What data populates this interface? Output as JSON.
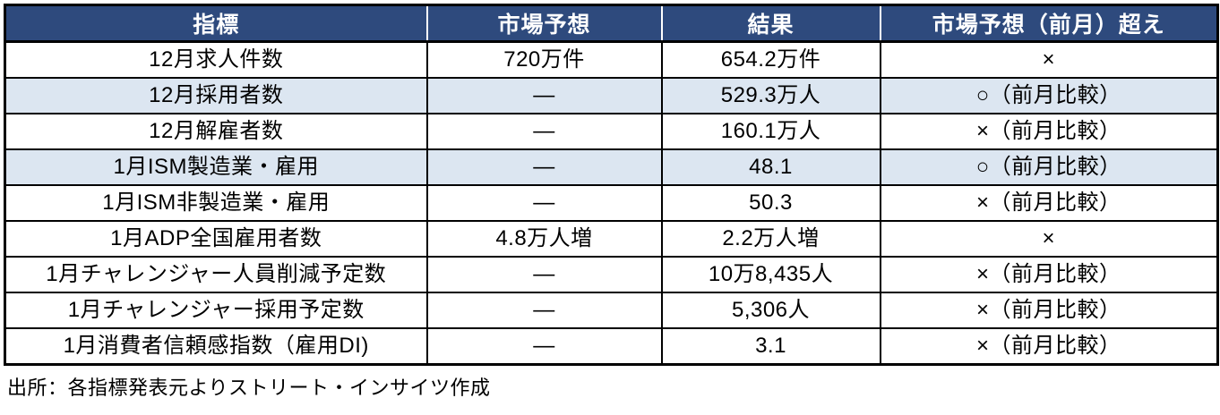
{
  "table": {
    "headers": [
      "指標",
      "市場予想",
      "結果",
      "市場予想（前月）超え"
    ],
    "rows": [
      {
        "indicator": "12月求人件数",
        "forecast": "720万件",
        "result": "654.2万件",
        "beat": "×",
        "highlight": false
      },
      {
        "indicator": "12月採用者数",
        "forecast": "―",
        "result": "529.3万人",
        "beat": "○（前月比較）",
        "highlight": true
      },
      {
        "indicator": "12月解雇者数",
        "forecast": "―",
        "result": "160.1万人",
        "beat": "×（前月比較）",
        "highlight": false
      },
      {
        "indicator": "1月ISM製造業・雇用",
        "forecast": "―",
        "result": "48.1",
        "beat": "○（前月比較）",
        "highlight": true
      },
      {
        "indicator": "1月ISM非製造業・雇用",
        "forecast": "―",
        "result": "50.3",
        "beat": "×（前月比較）",
        "highlight": false
      },
      {
        "indicator": "1月ADP全国雇用者数",
        "forecast": "4.8万人増",
        "result": "2.2万人増",
        "beat": "×",
        "highlight": false
      },
      {
        "indicator": "1月チャレンジャー人員削減予定数",
        "forecast": "―",
        "result": "10万8,435人",
        "beat": "×（前月比較）",
        "highlight": false
      },
      {
        "indicator": "1月チャレンジャー採用予定数",
        "forecast": "―",
        "result": "5,306人",
        "beat": "×（前月比較）",
        "highlight": false
      },
      {
        "indicator": "1月消費者信頼感指数（雇用DI)",
        "forecast": "―",
        "result": "3.1",
        "beat": "×（前月比較）",
        "highlight": false
      }
    ],
    "source_note": "出所：各指標発表元よりストリート・インサイツ作成"
  },
  "colors": {
    "header_bg": "#2e4a7d",
    "header_text": "#ffffff",
    "row_highlight_bg": "#dce6f1",
    "border": "#000000"
  },
  "chart_data": {
    "type": "table",
    "title": "",
    "columns": [
      "指標",
      "市場予想",
      "結果",
      "市場予想（前月）超え"
    ],
    "rows": [
      [
        "12月求人件数",
        "720万件",
        "654.2万件",
        "×"
      ],
      [
        "12月採用者数",
        "―",
        "529.3万人",
        "○（前月比較）"
      ],
      [
        "12月解雇者数",
        "―",
        "160.1万人",
        "×（前月比較）"
      ],
      [
        "1月ISM製造業・雇用",
        "―",
        "48.1",
        "○（前月比較）"
      ],
      [
        "1月ISM非製造業・雇用",
        "―",
        "50.3",
        "×（前月比較）"
      ],
      [
        "1月ADP全国雇用者数",
        "4.8万人増",
        "2.2万人増",
        "×"
      ],
      [
        "1月チャレンジャー人員削減予定数",
        "―",
        "10万8,435人",
        "×（前月比較）"
      ],
      [
        "1月チャレンジャー採用予定数",
        "―",
        "5,306人",
        "×（前月比較）"
      ],
      [
        "1月消費者信頼感指数（雇用DI)",
        "―",
        "3.1",
        "×（前月比較）"
      ]
    ],
    "annotations": [
      "出所：各指標発表元よりストリート・インサイツ作成"
    ]
  }
}
